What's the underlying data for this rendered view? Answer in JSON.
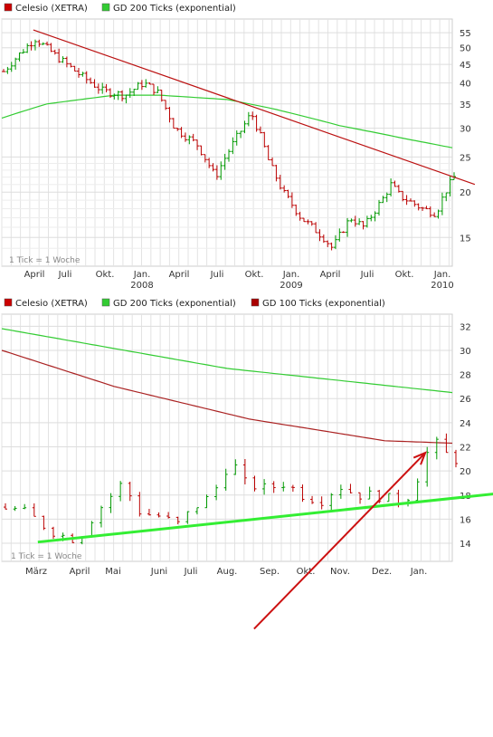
{
  "chart_data": [
    {
      "type": "ohlc",
      "legend": [
        {
          "label": "Celesio (XETRA)",
          "color": "#cc0000"
        },
        {
          "label": "GD 200 Ticks (exponential)",
          "color": "#33cc33"
        }
      ],
      "y_scale": "log",
      "ylim": [
        12.5,
        60
      ],
      "y_ticks": [
        "55",
        "50",
        "45",
        "40",
        "35",
        "30",
        "25",
        "20",
        "15"
      ],
      "x_ticks": [
        {
          "label": "April",
          "year": ""
        },
        {
          "label": "Juli",
          "year": ""
        },
        {
          "label": "Okt.",
          "year": ""
        },
        {
          "label": "Jan.",
          "year": "2008"
        },
        {
          "label": "April",
          "year": ""
        },
        {
          "label": "Juli",
          "year": ""
        },
        {
          "label": "Okt.",
          "year": ""
        },
        {
          "label": "Jan.",
          "year": "2009"
        },
        {
          "label": "April",
          "year": ""
        },
        {
          "label": "Juli",
          "year": ""
        },
        {
          "label": "Okt.",
          "year": ""
        },
        {
          "label": "Jan.",
          "year": "2010"
        }
      ],
      "note": "1 Tick = 1 Woche",
      "price_keypoints": [
        {
          "t": 0,
          "v": 43
        },
        {
          "t": 0.07,
          "v": 53
        },
        {
          "t": 0.12,
          "v": 47
        },
        {
          "t": 0.17,
          "v": 42
        },
        {
          "t": 0.22,
          "v": 38
        },
        {
          "t": 0.27,
          "v": 37
        },
        {
          "t": 0.31,
          "v": 40
        },
        {
          "t": 0.34,
          "v": 38
        },
        {
          "t": 0.38,
          "v": 30
        },
        {
          "t": 0.43,
          "v": 27
        },
        {
          "t": 0.47,
          "v": 22
        },
        {
          "t": 0.53,
          "v": 30
        },
        {
          "t": 0.55,
          "v": 33
        },
        {
          "t": 0.59,
          "v": 24
        },
        {
          "t": 0.62,
          "v": 20
        },
        {
          "t": 0.66,
          "v": 17
        },
        {
          "t": 0.71,
          "v": 15
        },
        {
          "t": 0.73,
          "v": 14
        },
        {
          "t": 0.77,
          "v": 17
        },
        {
          "t": 0.8,
          "v": 16
        },
        {
          "t": 0.84,
          "v": 19
        },
        {
          "t": 0.86,
          "v": 21
        },
        {
          "t": 0.88,
          "v": 19.5
        },
        {
          "t": 0.93,
          "v": 18
        },
        {
          "t": 0.96,
          "v": 17.5
        },
        {
          "t": 0.98,
          "v": 20
        },
        {
          "t": 1.0,
          "v": 22
        }
      ],
      "ma200_keypoints": [
        {
          "t": 0,
          "v": 32
        },
        {
          "t": 0.1,
          "v": 35
        },
        {
          "t": 0.25,
          "v": 37
        },
        {
          "t": 0.35,
          "v": 37
        },
        {
          "t": 0.5,
          "v": 36
        },
        {
          "t": 0.6,
          "v": 34
        },
        {
          "t": 0.75,
          "v": 30.5
        },
        {
          "t": 0.9,
          "v": 28
        },
        {
          "t": 1.0,
          "v": 26.5
        }
      ],
      "trendline": {
        "from": {
          "t": 0.07,
          "v": 56
        },
        "to": {
          "t": 1.05,
          "v": 21
        }
      }
    },
    {
      "type": "ohlc",
      "legend": [
        {
          "label": "Celesio (XETRA)",
          "color": "#cc0000"
        },
        {
          "label": "GD 200 Ticks (exponential)",
          "color": "#33cc33"
        },
        {
          "label": "GD 100 Ticks (exponential)",
          "color": "#aa0000"
        }
      ],
      "ylim": [
        12.5,
        33
      ],
      "y_ticks": [
        "32",
        "30",
        "28",
        "26",
        "24",
        "22",
        "20",
        "18",
        "16",
        "14"
      ],
      "x_ticks": [
        {
          "label": "März"
        },
        {
          "label": "April"
        },
        {
          "label": "Mai"
        },
        {
          "label": "Juni"
        },
        {
          "label": "Juli"
        },
        {
          "label": "Aug."
        },
        {
          "label": "Sep."
        },
        {
          "label": "Okt."
        },
        {
          "label": "Nov."
        },
        {
          "label": "Dez."
        },
        {
          "label": "Jan."
        }
      ],
      "note": "1 Tick = 1 Woche",
      "price_keypoints": [
        {
          "t": 0,
          "v": 17
        },
        {
          "t": 0.05,
          "v": 16.5
        },
        {
          "t": 0.1,
          "v": 15
        },
        {
          "t": 0.16,
          "v": 14.2
        },
        {
          "t": 0.2,
          "v": 16.5
        },
        {
          "t": 0.26,
          "v": 19
        },
        {
          "t": 0.3,
          "v": 16.5
        },
        {
          "t": 0.35,
          "v": 16.2
        },
        {
          "t": 0.38,
          "v": 15.5
        },
        {
          "t": 0.42,
          "v": 17
        },
        {
          "t": 0.46,
          "v": 18
        },
        {
          "t": 0.5,
          "v": 21
        },
        {
          "t": 0.53,
          "v": 19
        },
        {
          "t": 0.58,
          "v": 18.5
        },
        {
          "t": 0.62,
          "v": 19
        },
        {
          "t": 0.66,
          "v": 18
        },
        {
          "t": 0.7,
          "v": 17.5
        },
        {
          "t": 0.74,
          "v": 18.8
        },
        {
          "t": 0.78,
          "v": 18
        },
        {
          "t": 0.82,
          "v": 18
        },
        {
          "t": 0.87,
          "v": 17.5
        },
        {
          "t": 0.9,
          "v": 18
        },
        {
          "t": 0.93,
          "v": 21
        },
        {
          "t": 0.95,
          "v": 22.5
        },
        {
          "t": 0.97,
          "v": 21.5
        },
        {
          "t": 1.0,
          "v": 21
        }
      ],
      "ma200_keypoints": [
        {
          "t": 0,
          "v": 31.8
        },
        {
          "t": 0.5,
          "v": 28.5
        },
        {
          "t": 1.0,
          "v": 26.5
        }
      ],
      "ma100_keypoints": [
        {
          "t": 0,
          "v": 30
        },
        {
          "t": 0.25,
          "v": 27
        },
        {
          "t": 0.55,
          "v": 24.3
        },
        {
          "t": 0.85,
          "v": 22.5
        },
        {
          "t": 1.0,
          "v": 22.3
        }
      ],
      "support_line": {
        "from": {
          "t": 0.08,
          "v": 14.1
        },
        "to": {
          "t": 1.12,
          "v": 18.2
        }
      },
      "arrow": {
        "from": {
          "t": 0.56,
          "v": 6.9
        },
        "to": {
          "t": 0.94,
          "v": 21.5
        }
      }
    }
  ]
}
